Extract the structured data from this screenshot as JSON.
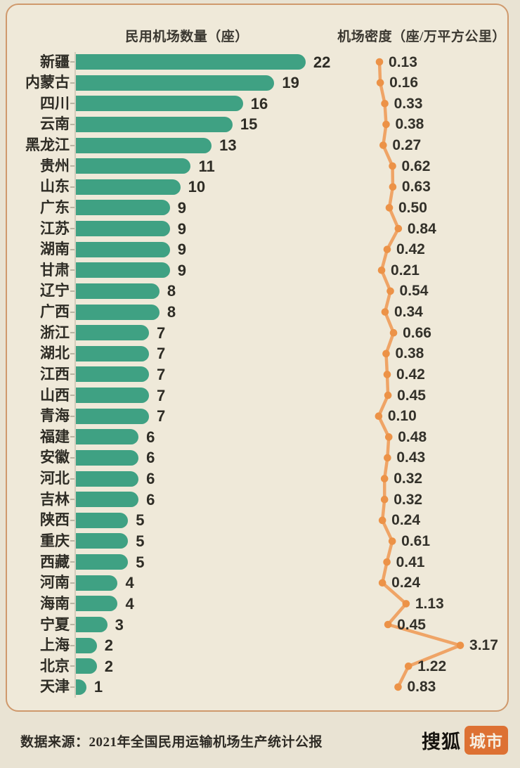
{
  "header": {
    "bar_title": "民用机场数量（座）",
    "density_title": "机场密度（座/万平方公里）"
  },
  "footer": {
    "source": "数据来源：2021年全国民用运输机场生产统计公报",
    "brand_name": "搜狐",
    "brand_badge": "城市"
  },
  "colors": {
    "background": "#e9e3d3",
    "panel_background": "#efe9d9",
    "panel_border": "#cf996c",
    "bar": "#3fa183",
    "line": "#efa466",
    "dot": "#ec9247",
    "text": "#2e2c25",
    "badge": "#dd7133"
  },
  "chart_data": {
    "type": "bar",
    "orientation": "horizontal",
    "grid": false,
    "legend": "none",
    "series": [
      {
        "name": "民用机场数量（座）",
        "type": "bar",
        "color": "#3fa183"
      },
      {
        "name": "机场密度（座/万平方公里）",
        "type": "line",
        "color": "#ec9247"
      }
    ],
    "density_range": [
      0,
      3.5
    ],
    "rows": [
      {
        "province": "新疆",
        "airports": 22,
        "density": "0.13"
      },
      {
        "province": "内蒙古",
        "airports": 19,
        "density": "0.16"
      },
      {
        "province": "四川",
        "airports": 16,
        "density": "0.33"
      },
      {
        "province": "云南",
        "airports": 15,
        "density": "0.38"
      },
      {
        "province": "黑龙江",
        "airports": 13,
        "density": "0.27"
      },
      {
        "province": "贵州",
        "airports": 11,
        "density": "0.62"
      },
      {
        "province": "山东",
        "airports": 10,
        "density": "0.63"
      },
      {
        "province": "广东",
        "airports": 9,
        "density": "0.50"
      },
      {
        "province": "江苏",
        "airports": 9,
        "density": "0.84"
      },
      {
        "province": "湖南",
        "airports": 9,
        "density": "0.42"
      },
      {
        "province": "甘肃",
        "airports": 9,
        "density": "0.21"
      },
      {
        "province": "辽宁",
        "airports": 8,
        "density": "0.54"
      },
      {
        "province": "广西",
        "airports": 8,
        "density": "0.34"
      },
      {
        "province": "浙江",
        "airports": 7,
        "density": "0.66"
      },
      {
        "province": "湖北",
        "airports": 7,
        "density": "0.38"
      },
      {
        "province": "江西",
        "airports": 7,
        "density": "0.42"
      },
      {
        "province": "山西",
        "airports": 7,
        "density": "0.45"
      },
      {
        "province": "青海",
        "airports": 7,
        "density": "0.10"
      },
      {
        "province": "福建",
        "airports": 6,
        "density": "0.48"
      },
      {
        "province": "安徽",
        "airports": 6,
        "density": "0.43"
      },
      {
        "province": "河北",
        "airports": 6,
        "density": "0.32"
      },
      {
        "province": "吉林",
        "airports": 6,
        "density": "0.32"
      },
      {
        "province": "陕西",
        "airports": 5,
        "density": "0.24"
      },
      {
        "province": "重庆",
        "airports": 5,
        "density": "0.61"
      },
      {
        "province": "西藏",
        "airports": 5,
        "density": "0.41"
      },
      {
        "province": "河南",
        "airports": 4,
        "density": "0.24"
      },
      {
        "province": "海南",
        "airports": 4,
        "density": "1.13"
      },
      {
        "province": "宁夏",
        "airports": 3,
        "density": "0.45"
      },
      {
        "province": "上海",
        "airports": 2,
        "density": "3.17"
      },
      {
        "province": "北京",
        "airports": 2,
        "density": "1.22"
      },
      {
        "province": "天津",
        "airports": 1,
        "density": "0.83"
      }
    ]
  }
}
